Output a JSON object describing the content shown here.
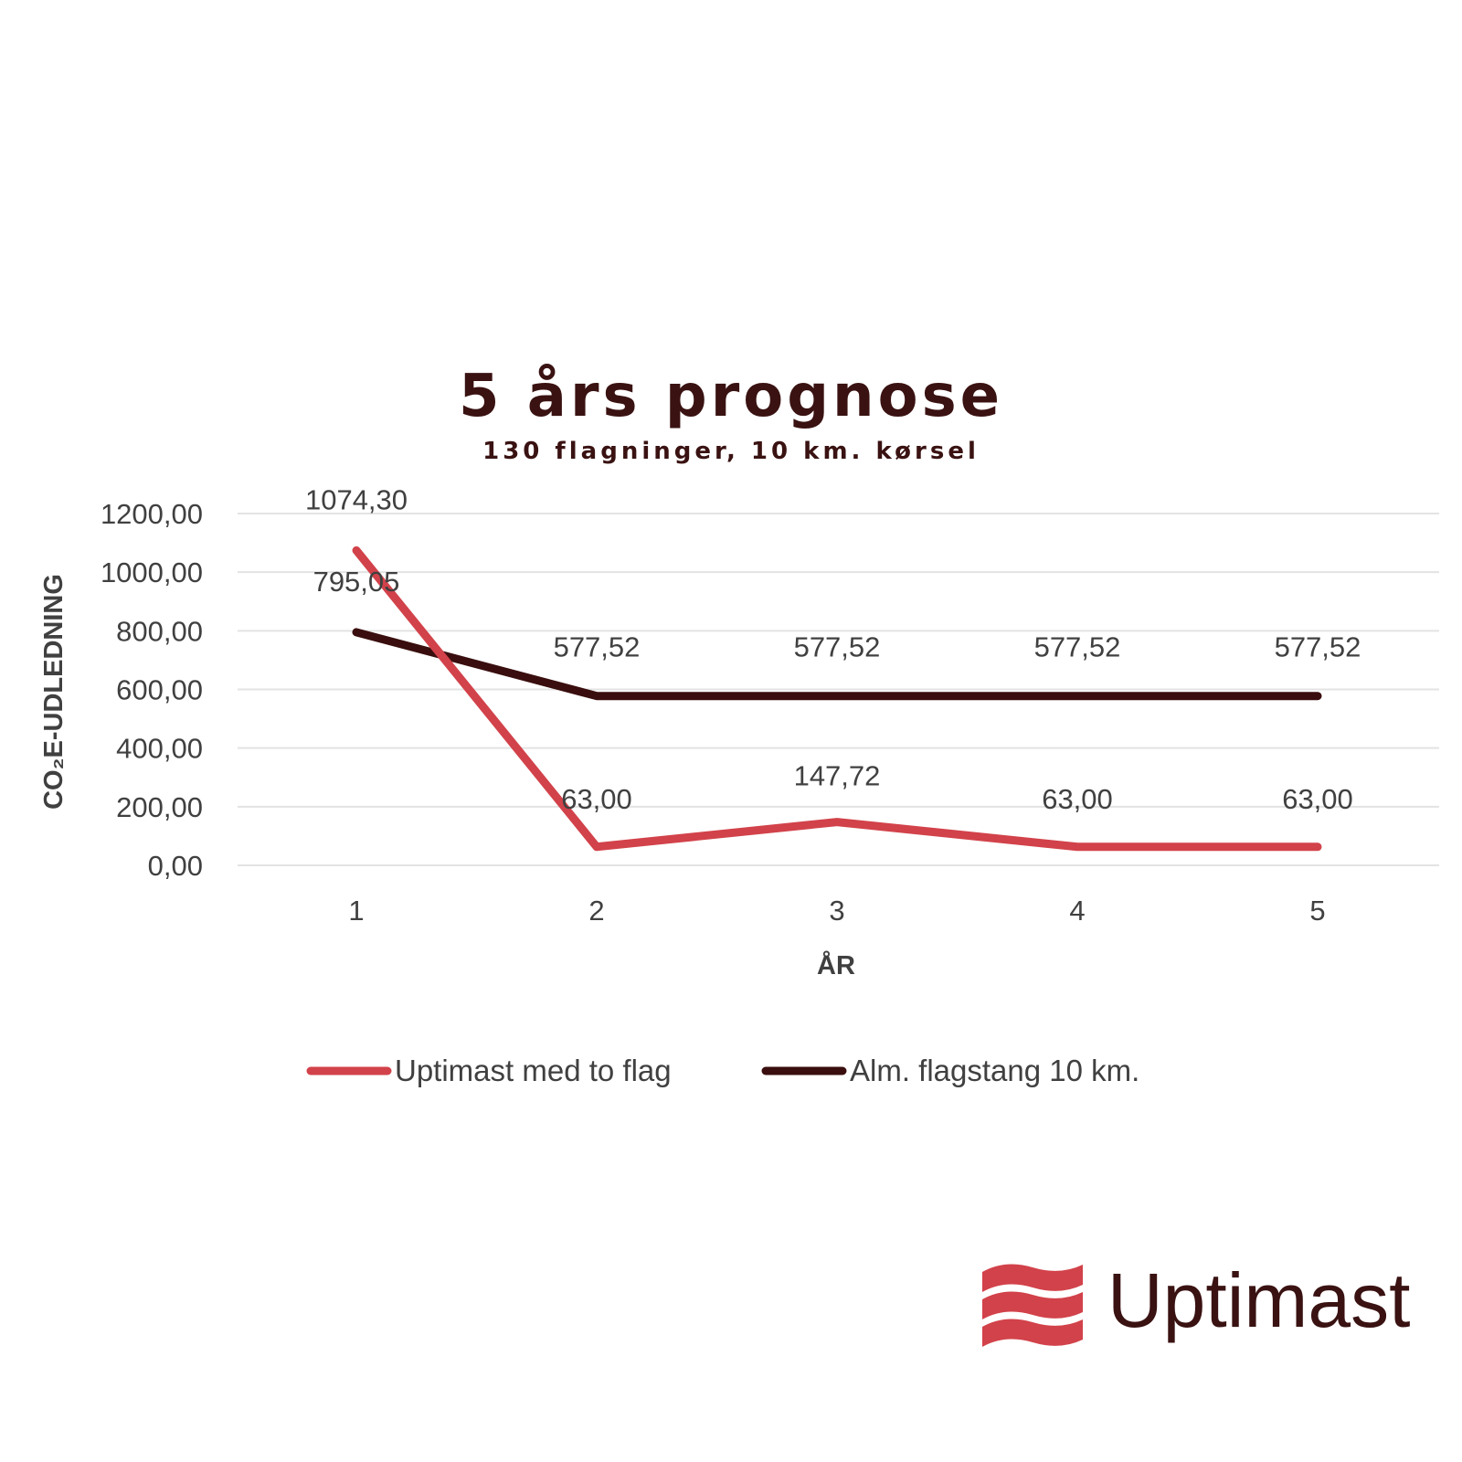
{
  "chart_data": {
    "type": "line",
    "title": "5 års prognose",
    "subtitle": "130 flagninger, 10 km. kørsel",
    "xlabel": "ÅR",
    "ylabel": "CO₂E-UDLEDNING",
    "categories": [
      "1",
      "2",
      "3",
      "4",
      "5"
    ],
    "ylim": [
      0,
      1200
    ],
    "yticks": [
      "0,00",
      "200,00",
      "400,00",
      "600,00",
      "800,00",
      "1000,00",
      "1200,00"
    ],
    "grid": true,
    "legend_position": "bottom",
    "series": [
      {
        "name": "Uptimast med to flag",
        "color": "#d2424a",
        "values": [
          1074.3,
          63.0,
          147.72,
          63.0,
          63.0
        ],
        "labels": [
          "1074,30",
          "63,00",
          "147,72",
          "63,00",
          "63,00"
        ]
      },
      {
        "name": "Alm. flagstang 10 km.",
        "color": "#3a0e0e",
        "values": [
          795.05,
          577.52,
          577.52,
          577.52,
          577.52
        ],
        "labels": [
          "795,05",
          "577,52",
          "577,52",
          "577,52",
          "577,52"
        ]
      }
    ]
  },
  "logo": {
    "text": "Uptimast",
    "icon": "wave-flag-icon",
    "icon_color": "#d2424a",
    "text_color": "#3a1212"
  }
}
